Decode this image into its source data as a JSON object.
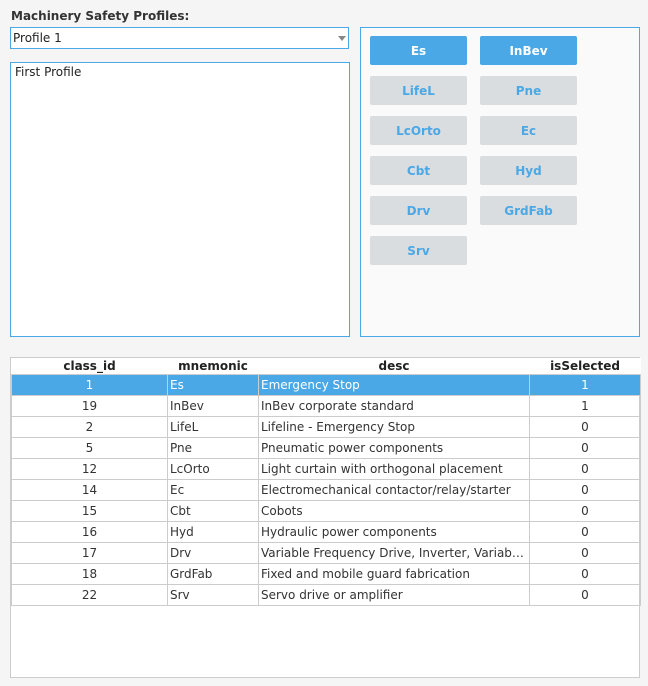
{
  "title": "Machinery Safety Profiles:",
  "profile_select": {
    "value": "Profile 1"
  },
  "profile_description": "First Profile",
  "class_buttons": [
    {
      "label": "Es",
      "selected": true
    },
    {
      "label": "InBev",
      "selected": true
    },
    {
      "label": "LifeL",
      "selected": false
    },
    {
      "label": "Pne",
      "selected": false
    },
    {
      "label": "LcOrto",
      "selected": false
    },
    {
      "label": "Ec",
      "selected": false
    },
    {
      "label": "Cbt",
      "selected": false
    },
    {
      "label": "Hyd",
      "selected": false
    },
    {
      "label": "Drv",
      "selected": false
    },
    {
      "label": "GrdFab",
      "selected": false
    },
    {
      "label": "Srv",
      "selected": false
    }
  ],
  "table": {
    "columns": [
      "class_id",
      "mnemonic",
      "desc",
      "isSelected"
    ],
    "selected_row": 0,
    "rows": [
      [
        "1",
        "Es",
        "Emergency Stop",
        "1"
      ],
      [
        "19",
        "InBev",
        "InBev corporate standard",
        "1"
      ],
      [
        "2",
        "LifeL",
        "Lifeline - Emergency Stop",
        "0"
      ],
      [
        "5",
        "Pne",
        "Pneumatic power components",
        "0"
      ],
      [
        "12",
        "LcOrto",
        "Light curtain with orthogonal placement",
        "0"
      ],
      [
        "14",
        "Ec",
        "Electromechanical contactor/relay/starter",
        "0"
      ],
      [
        "15",
        "Cbt",
        "Cobots",
        "0"
      ],
      [
        "16",
        "Hyd",
        "Hydraulic power components",
        "0"
      ],
      [
        "17",
        "Drv",
        "Variable Frequency Drive, Inverter, Variable Speed Drive",
        "0"
      ],
      [
        "18",
        "GrdFab",
        "Fixed and mobile guard fabrication",
        "0"
      ],
      [
        "22",
        "Srv",
        "Servo drive or amplifier",
        "0"
      ]
    ]
  },
  "colors": {
    "accent": "#4aa8e6",
    "button_unselected": "#dadde0"
  }
}
